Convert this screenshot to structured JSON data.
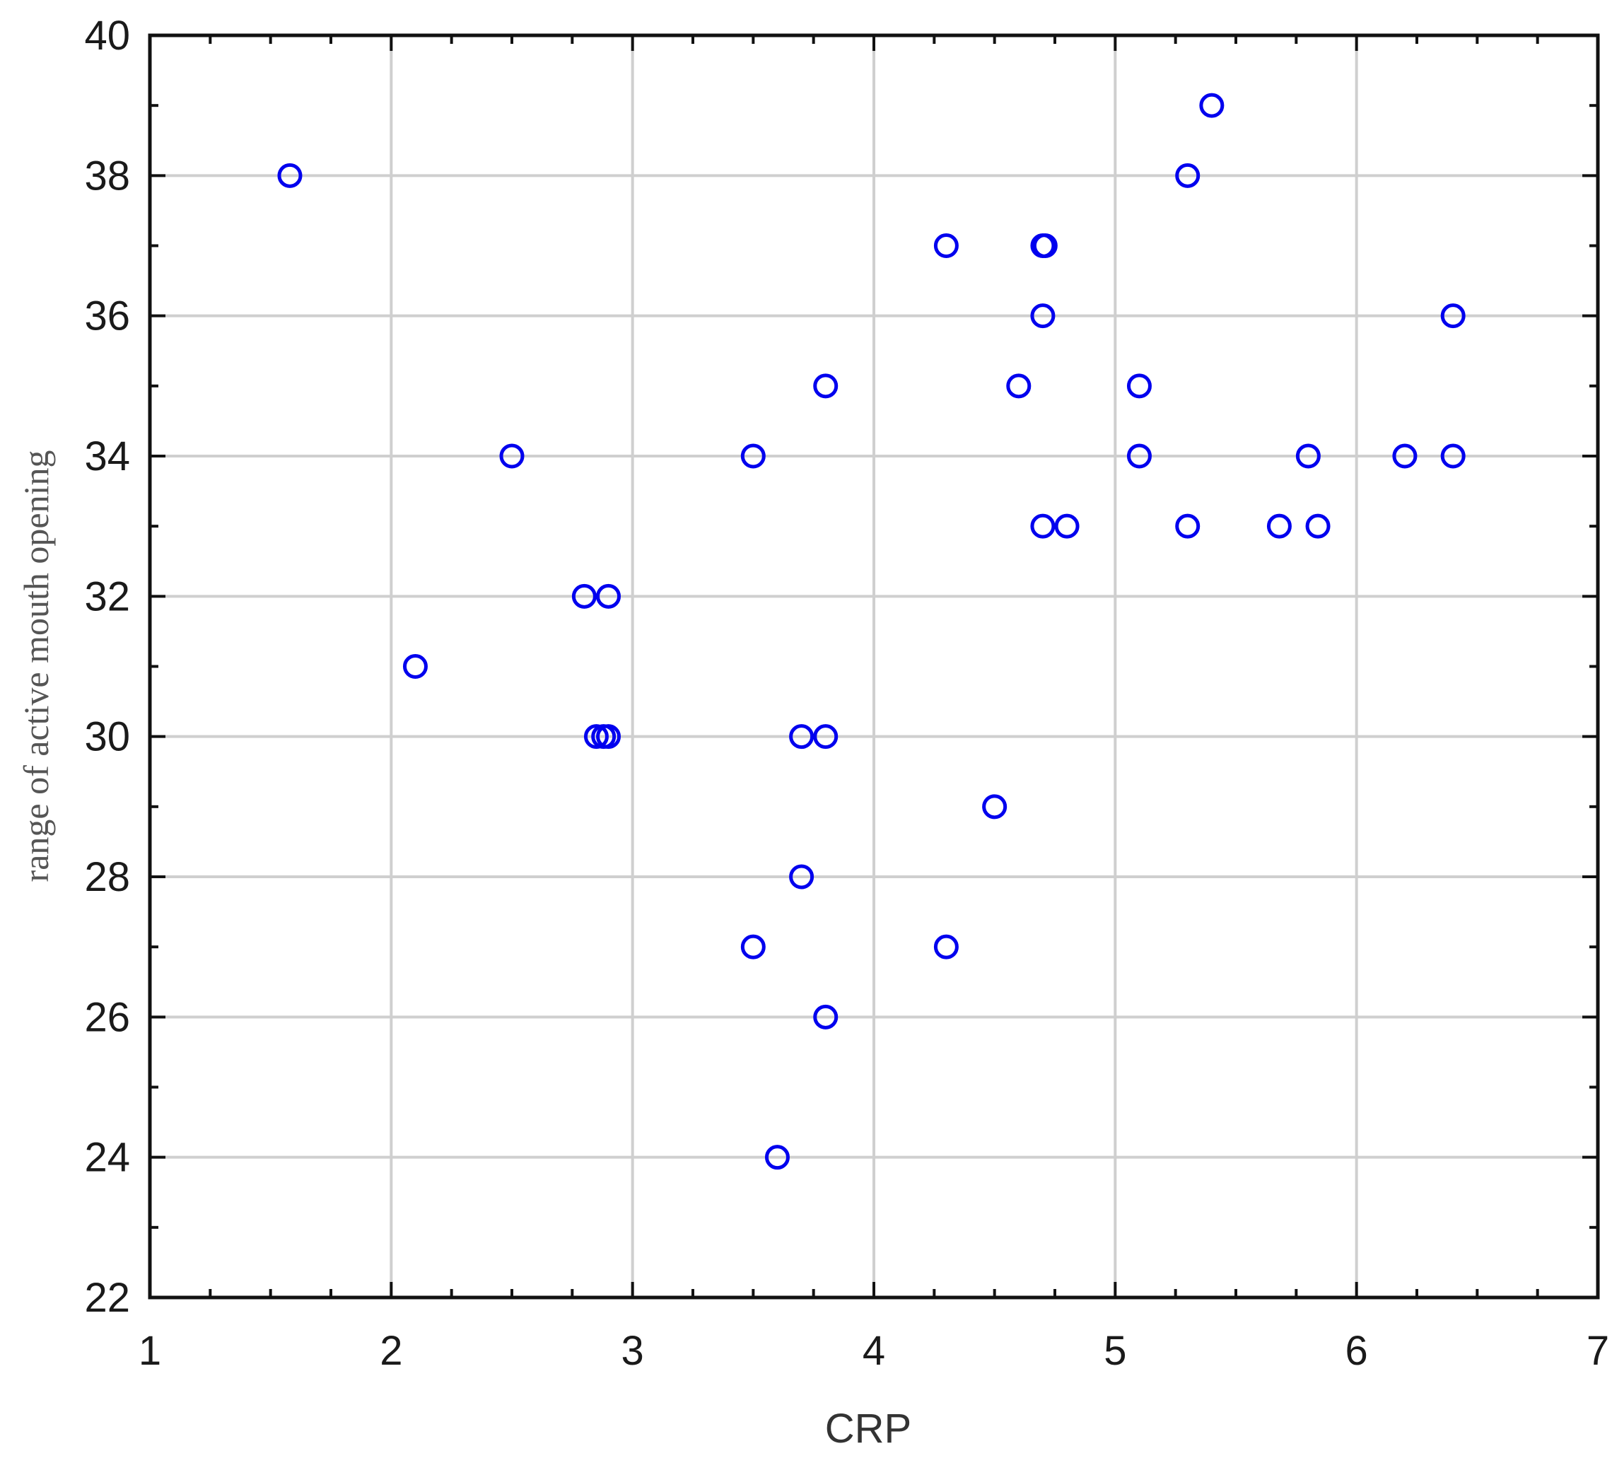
{
  "chart_data": {
    "type": "scatter",
    "title": "",
    "xlabel": "CRP",
    "ylabel": "range of active mouth opening",
    "xlim": [
      1,
      7
    ],
    "ylim": [
      22,
      40
    ],
    "xticks": [
      1,
      2,
      3,
      4,
      5,
      6,
      7
    ],
    "yticks": [
      22,
      24,
      26,
      28,
      30,
      32,
      34,
      36,
      38,
      40
    ],
    "grid": true,
    "marker": "open-circle",
    "marker_color": "#0000ee",
    "points": [
      {
        "x": 1.58,
        "y": 38
      },
      {
        "x": 2.1,
        "y": 31
      },
      {
        "x": 2.5,
        "y": 34
      },
      {
        "x": 2.8,
        "y": 32
      },
      {
        "x": 2.9,
        "y": 32
      },
      {
        "x": 2.85,
        "y": 30
      },
      {
        "x": 2.88,
        "y": 30
      },
      {
        "x": 2.9,
        "y": 30
      },
      {
        "x": 3.5,
        "y": 34
      },
      {
        "x": 3.5,
        "y": 27
      },
      {
        "x": 3.6,
        "y": 24
      },
      {
        "x": 3.7,
        "y": 30
      },
      {
        "x": 3.7,
        "y": 28
      },
      {
        "x": 3.8,
        "y": 35
      },
      {
        "x": 3.8,
        "y": 30
      },
      {
        "x": 3.8,
        "y": 26
      },
      {
        "x": 4.3,
        "y": 37
      },
      {
        "x": 4.3,
        "y": 27
      },
      {
        "x": 4.5,
        "y": 29
      },
      {
        "x": 4.6,
        "y": 35
      },
      {
        "x": 4.7,
        "y": 37
      },
      {
        "x": 4.71,
        "y": 37
      },
      {
        "x": 4.7,
        "y": 36
      },
      {
        "x": 4.7,
        "y": 33
      },
      {
        "x": 4.8,
        "y": 33
      },
      {
        "x": 5.1,
        "y": 35
      },
      {
        "x": 5.1,
        "y": 34
      },
      {
        "x": 5.3,
        "y": 38
      },
      {
        "x": 5.3,
        "y": 33
      },
      {
        "x": 5.4,
        "y": 39
      },
      {
        "x": 5.68,
        "y": 33
      },
      {
        "x": 5.8,
        "y": 34
      },
      {
        "x": 5.84,
        "y": 33
      },
      {
        "x": 6.2,
        "y": 34
      },
      {
        "x": 6.4,
        "y": 36
      },
      {
        "x": 6.4,
        "y": 34
      }
    ]
  }
}
